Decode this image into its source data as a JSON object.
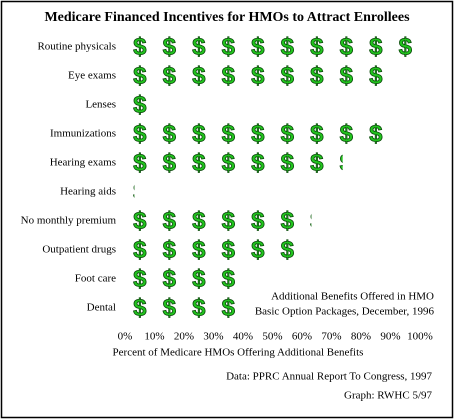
{
  "chart_data": {
    "type": "pictograph",
    "title": "Medicare Financed Incentives for HMOs to Attract Enrollees",
    "categories": [
      "Routine physicals",
      "Eye exams",
      "Lenses",
      "Immunizations",
      "Hearing exams",
      "Hearing aids",
      "No monthly premium",
      "Outpatient drugs",
      "Foot care",
      "Dental"
    ],
    "values": [
      100,
      90,
      10,
      90,
      73,
      2,
      62,
      60,
      40,
      40
    ],
    "icon": "$",
    "icon_unit": 10,
    "color": "#22c41e",
    "xlim": [
      0,
      100
    ],
    "xticks": [
      {
        "value": 0,
        "label": "0%"
      },
      {
        "value": 10,
        "label": "10%"
      },
      {
        "value": 20,
        "label": "20%"
      },
      {
        "value": 30,
        "label": "30%"
      },
      {
        "value": 40,
        "label": "40%"
      },
      {
        "value": 50,
        "label": "50%"
      },
      {
        "value": 60,
        "label": "60%"
      },
      {
        "value": 70,
        "label": "70%"
      },
      {
        "value": 80,
        "label": "80%"
      },
      {
        "value": 90,
        "label": "90%"
      },
      {
        "value": 100,
        "label": "100%"
      }
    ],
    "x_label": "Percent of Medicare HMOs Offering Additional Benefits",
    "annotation": [
      "Additional Benefits Offered in HMO",
      "Basic Option Packages, December, 1996"
    ],
    "source": [
      "Data: PPRC Annual Report To Congress, 1997",
      "Graph: RWHC 5/97"
    ]
  }
}
